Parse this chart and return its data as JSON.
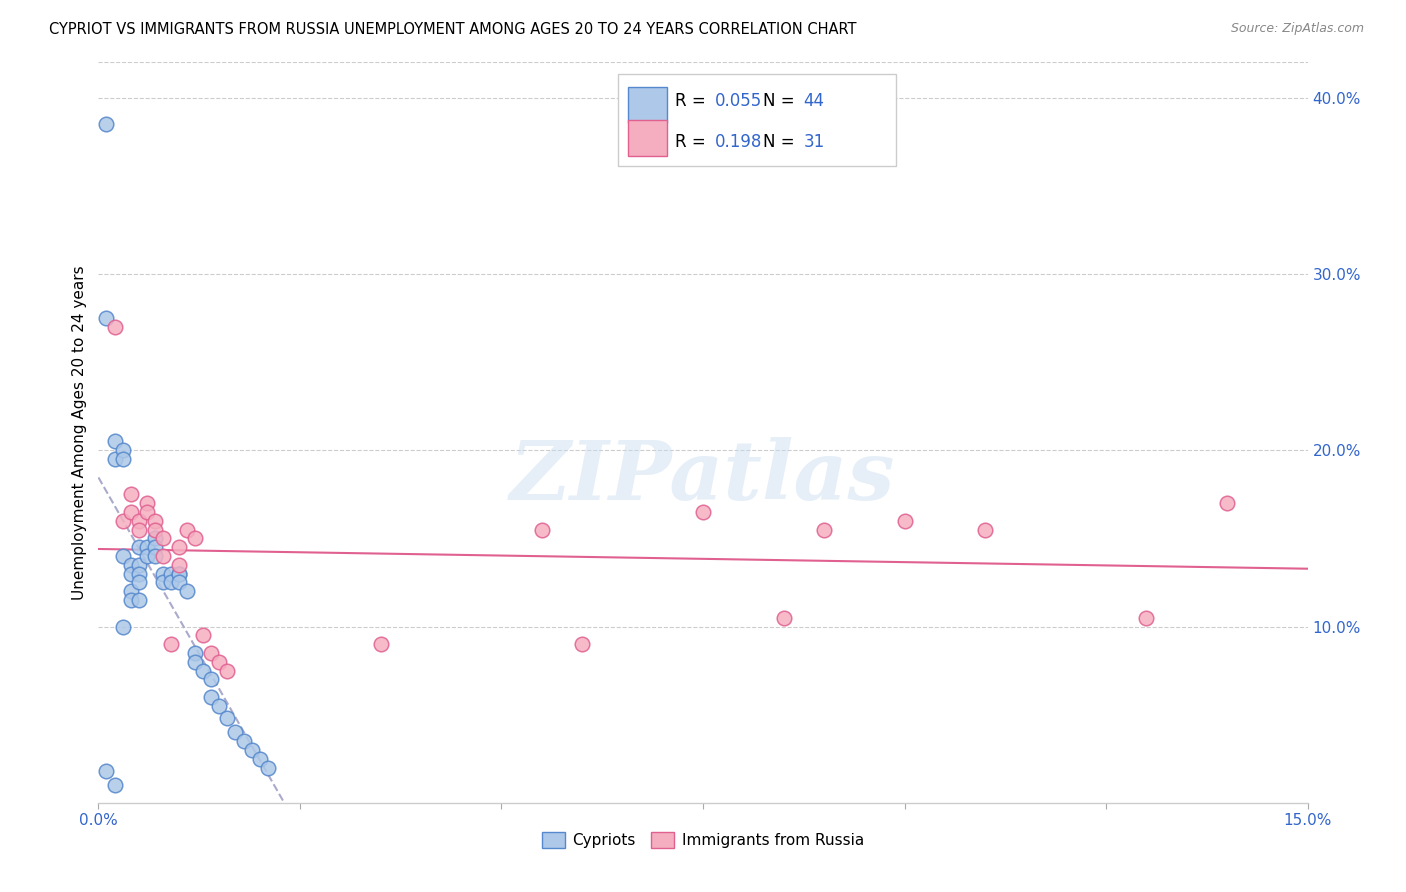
{
  "title": "CYPRIOT VS IMMIGRANTS FROM RUSSIA UNEMPLOYMENT AMONG AGES 20 TO 24 YEARS CORRELATION CHART",
  "source": "Source: ZipAtlas.com",
  "ylabel": "Unemployment Among Ages 20 to 24 years",
  "xlim": [
    0.0,
    0.15
  ],
  "ylim": [
    0.0,
    0.42
  ],
  "x_ticks": [
    0.0,
    0.025,
    0.05,
    0.075,
    0.1,
    0.125,
    0.15
  ],
  "y_ticks_right": [
    0.0,
    0.1,
    0.2,
    0.3,
    0.4
  ],
  "cypriot_color": "#adc8e8",
  "russia_color": "#f5aec0",
  "cypriot_edge_color": "#5588cc",
  "russia_edge_color": "#e06090",
  "cypriot_trend_color": "#aaaacc",
  "russia_trend_color": "#e06090",
  "R_cypriot": 0.055,
  "N_cypriot": 44,
  "R_russia": 0.198,
  "N_russia": 31,
  "watermark": "ZIPatlas",
  "cypriot_x": [
    0.001,
    0.001,
    0.002,
    0.002,
    0.003,
    0.003,
    0.003,
    0.003,
    0.004,
    0.004,
    0.004,
    0.004,
    0.005,
    0.005,
    0.005,
    0.005,
    0.005,
    0.006,
    0.006,
    0.007,
    0.007,
    0.007,
    0.008,
    0.008,
    0.009,
    0.009,
    0.01,
    0.01,
    0.01,
    0.011,
    0.012,
    0.012,
    0.013,
    0.014,
    0.014,
    0.015,
    0.016,
    0.017,
    0.018,
    0.019,
    0.02,
    0.021,
    0.001,
    0.002
  ],
  "cypriot_y": [
    0.385,
    0.275,
    0.205,
    0.195,
    0.2,
    0.195,
    0.14,
    0.1,
    0.135,
    0.13,
    0.12,
    0.115,
    0.145,
    0.135,
    0.13,
    0.125,
    0.115,
    0.145,
    0.14,
    0.15,
    0.145,
    0.14,
    0.13,
    0.125,
    0.13,
    0.125,
    0.13,
    0.13,
    0.125,
    0.12,
    0.085,
    0.08,
    0.075,
    0.07,
    0.06,
    0.055,
    0.048,
    0.04,
    0.035,
    0.03,
    0.025,
    0.02,
    0.018,
    0.01
  ],
  "russia_x": [
    0.002,
    0.003,
    0.004,
    0.004,
    0.005,
    0.005,
    0.006,
    0.006,
    0.007,
    0.007,
    0.008,
    0.008,
    0.009,
    0.01,
    0.01,
    0.011,
    0.012,
    0.013,
    0.014,
    0.015,
    0.016,
    0.035,
    0.055,
    0.06,
    0.075,
    0.085,
    0.09,
    0.1,
    0.11,
    0.13,
    0.14
  ],
  "russia_y": [
    0.27,
    0.16,
    0.175,
    0.165,
    0.16,
    0.155,
    0.17,
    0.165,
    0.16,
    0.155,
    0.15,
    0.14,
    0.09,
    0.145,
    0.135,
    0.155,
    0.15,
    0.095,
    0.085,
    0.08,
    0.075,
    0.09,
    0.155,
    0.09,
    0.165,
    0.105,
    0.155,
    0.16,
    0.155,
    0.105,
    0.17
  ]
}
